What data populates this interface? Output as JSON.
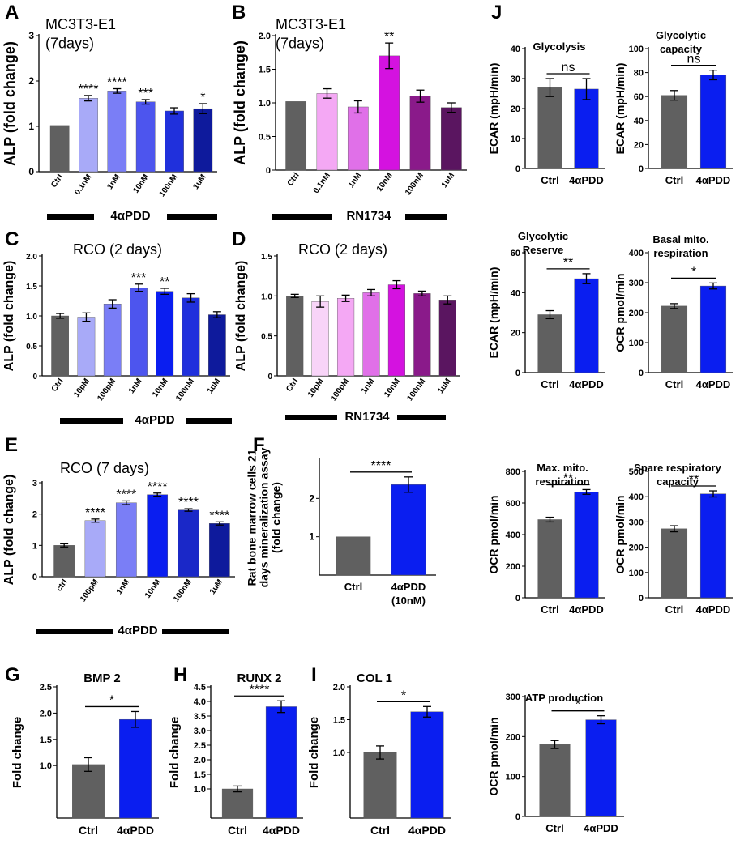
{
  "panel_letters": {
    "A": "A",
    "B": "B",
    "C": "C",
    "D": "D",
    "E": "E",
    "F": "F",
    "G": "G",
    "H": "H",
    "I": "I",
    "J": "J"
  },
  "group_labels": {
    "A": "4αPDD",
    "B": "RN1734",
    "C": "4αPDD",
    "D": "RN1734",
    "E": "4αPDD"
  },
  "colors": {
    "ctrl": "#606060",
    "blue": "#0a1ef0",
    "pink_light": "#f4a8f4",
    "pink_mid": "#e070e8",
    "magenta": "#d412e0",
    "purple": "#8a1a8a",
    "purple_dark": "#5a1560",
    "lav1": "#a8aaf8",
    "lav2": "#7a7ef6",
    "lav3": "#4d55ee",
    "blue2": "#2030dc",
    "navy1": "#1a28c8",
    "navy2": "#0e1a9c",
    "pink_pale": "#f8d4f8"
  },
  "chart_data": [
    {
      "id": "A",
      "type": "bar",
      "title": "MC3T3-E1\n(7days)",
      "ylabel": "ALP (fold change)",
      "ylim": [
        0,
        3
      ],
      "yticks": [
        0,
        1,
        2,
        3
      ],
      "categories": [
        "Ctrl",
        "0.1nM",
        "1nM",
        "10nM",
        "100nM",
        "1uM"
      ],
      "values": [
        1.02,
        1.62,
        1.78,
        1.54,
        1.34,
        1.39
      ],
      "errors": [
        0,
        0.06,
        0.05,
        0.05,
        0.07,
        0.11
      ],
      "sig": [
        "",
        "****",
        "****",
        "***",
        "",
        "*"
      ],
      "colors": [
        "ctrl",
        "lav1",
        "lav2",
        "lav3",
        "blue2",
        "navy2"
      ]
    },
    {
      "id": "B",
      "type": "bar",
      "title": "MC3T3-E1\n(7days)",
      "ylabel": "ALP (fold change)",
      "ylim": [
        0,
        2
      ],
      "yticks": [
        0,
        0.5,
        1.0,
        1.5,
        2.0
      ],
      "categories": [
        "Ctrl",
        "0.1nM",
        "1nM",
        "10nM",
        "100nM",
        "1uM"
      ],
      "values": [
        1.02,
        1.14,
        0.94,
        1.7,
        1.1,
        0.93
      ],
      "errors": [
        0,
        0.07,
        0.09,
        0.19,
        0.09,
        0.07
      ],
      "sig": [
        "",
        "",
        "",
        "**",
        "",
        ""
      ],
      "colors": [
        "ctrl",
        "pink_light",
        "pink_mid",
        "magenta",
        "purple",
        "purple_dark"
      ]
    },
    {
      "id": "C",
      "type": "bar",
      "title": "RCO (2 days)",
      "ylabel": "ALP (fold change)",
      "ylim": [
        0,
        2
      ],
      "yticks": [
        0,
        0.5,
        1.0,
        1.5,
        2.0
      ],
      "categories": [
        "Ctrl",
        "10pM",
        "100pM",
        "1nM",
        "10nM",
        "100nM",
        "1uM"
      ],
      "values": [
        1.0,
        0.98,
        1.2,
        1.47,
        1.41,
        1.3,
        1.02
      ],
      "errors": [
        0.04,
        0.07,
        0.07,
        0.06,
        0.05,
        0.07,
        0.05
      ],
      "sig": [
        "",
        "",
        "",
        "***",
        "**",
        "",
        ""
      ],
      "colors": [
        "ctrl",
        "lav1",
        "lav2",
        "lav3",
        "blue",
        "blue2",
        "navy2"
      ]
    },
    {
      "id": "D",
      "type": "bar",
      "title": "RCO (2 days)",
      "ylabel": "ALP (fold change)",
      "ylim": [
        0,
        1.5
      ],
      "yticks": [
        0,
        0.5,
        1.0,
        1.5
      ],
      "categories": [
        "Ctrl",
        "10pM",
        "100pM",
        "1nM",
        "10nM",
        "100nM",
        "1uM"
      ],
      "values": [
        1.0,
        0.93,
        0.97,
        1.04,
        1.14,
        1.03,
        0.95
      ],
      "errors": [
        0.02,
        0.07,
        0.04,
        0.04,
        0.05,
        0.03,
        0.05
      ],
      "sig": [
        "",
        "",
        "",
        "",
        "",
        "",
        ""
      ],
      "colors": [
        "ctrl",
        "pink_pale",
        "pink_light",
        "pink_mid",
        "magenta",
        "purple",
        "purple_dark"
      ]
    },
    {
      "id": "E",
      "type": "bar",
      "title": "RCO (7 days)",
      "ylabel": "ALP (fold change)",
      "ylim": [
        0,
        3
      ],
      "yticks": [
        0,
        1,
        2,
        3
      ],
      "categories": [
        "ctrl",
        "100pM",
        "1nM",
        "10nM",
        "100nM",
        "1uM"
      ],
      "values": [
        1.0,
        1.79,
        2.36,
        2.62,
        2.13,
        1.7
      ],
      "errors": [
        0.05,
        0.05,
        0.06,
        0.05,
        0.04,
        0.05
      ],
      "sig": [
        "",
        "****",
        "****",
        "****",
        "****",
        "****"
      ],
      "colors": [
        "ctrl",
        "lav1",
        "lav2",
        "blue",
        "navy1",
        "navy2"
      ]
    },
    {
      "id": "F",
      "type": "bar",
      "title": "",
      "ylabel": "Rat bone marrow cells 21\ndays mineralization assay\n(fold change)",
      "ylim": [
        0,
        3
      ],
      "yticks": [
        1,
        2
      ],
      "categories": [
        "Ctrl",
        "4αPDD\n(10nM)"
      ],
      "values": [
        1.0,
        2.36
      ],
      "errors": [
        0,
        0.2
      ],
      "sig": [
        "",
        ""
      ],
      "bracket": "****",
      "colors": [
        "ctrl",
        "blue"
      ]
    },
    {
      "id": "G",
      "type": "bar",
      "title": "BMP 2",
      "ylabel": "Fold change",
      "ylim": [
        0,
        2.5
      ],
      "yticks": [
        1.0,
        1.5,
        2.0,
        2.5
      ],
      "categories": [
        "Ctrl",
        "4αPDD"
      ],
      "values": [
        1.02,
        1.88
      ],
      "errors": [
        0.13,
        0.15
      ],
      "sig": [
        "",
        ""
      ],
      "bracket": "*",
      "colors": [
        "ctrl",
        "blue"
      ]
    },
    {
      "id": "H",
      "type": "bar",
      "title": "RUNX 2",
      "ylabel": "Fold change",
      "ylim": [
        0,
        4.5
      ],
      "yticks": [
        1.0,
        1.5,
        2.0,
        2.5,
        3.0,
        3.5,
        4.0,
        4.5
      ],
      "categories": [
        "Ctrl",
        "4αPDD"
      ],
      "values": [
        1.0,
        3.82
      ],
      "errors": [
        0.1,
        0.2
      ],
      "sig": [
        "",
        ""
      ],
      "bracket": "****",
      "colors": [
        "ctrl",
        "blue"
      ]
    },
    {
      "id": "I",
      "type": "bar",
      "title": "COL 1",
      "ylabel": "Fold change",
      "ylim": [
        0,
        2.0
      ],
      "yticks": [
        1.0,
        1.5,
        2.0
      ],
      "categories": [
        "Ctrl",
        "4αPDD"
      ],
      "values": [
        1.0,
        1.62
      ],
      "errors": [
        0.1,
        0.08
      ],
      "sig": [
        "",
        ""
      ],
      "bracket": "*",
      "colors": [
        "ctrl",
        "blue"
      ]
    },
    {
      "id": "J1",
      "type": "bar",
      "title": "Glycolysis",
      "ylabel": "ECAR (mpH/min)",
      "ylim": [
        0,
        40
      ],
      "yticks": [
        0,
        10,
        20,
        30,
        40
      ],
      "categories": [
        "Ctrl",
        "4αPDD"
      ],
      "values": [
        27,
        26.5
      ],
      "errors": [
        3,
        3.5
      ],
      "sig": [
        "",
        ""
      ],
      "bracket": "ns",
      "colors": [
        "ctrl",
        "blue"
      ]
    },
    {
      "id": "J2",
      "type": "bar",
      "title": "Glycolytic\ncapacity",
      "ylabel": "ECAR (mpH/min)",
      "ylim": [
        0,
        100
      ],
      "yticks": [
        0,
        20,
        40,
        60,
        80,
        100
      ],
      "categories": [
        "Ctrl",
        "4αPDD"
      ],
      "values": [
        61,
        78
      ],
      "errors": [
        4,
        4
      ],
      "sig": [
        "",
        ""
      ],
      "bracket": "ns",
      "colors": [
        "ctrl",
        "blue"
      ]
    },
    {
      "id": "J3",
      "type": "bar",
      "title": "Glycolytic\nReserve",
      "ylabel": "ECAR (mpH/min)",
      "ylim": [
        0,
        60
      ],
      "yticks": [
        0,
        20,
        40,
        60
      ],
      "categories": [
        "Ctrl",
        "4αPDD"
      ],
      "values": [
        29,
        47
      ],
      "errors": [
        2,
        2.5
      ],
      "sig": [
        "",
        ""
      ],
      "bracket": "**",
      "colors": [
        "ctrl",
        "blue"
      ]
    },
    {
      "id": "J4",
      "type": "bar",
      "title": "Basal mito.\nrespiration",
      "ylabel": "OCR pmol/min",
      "ylim": [
        0,
        400
      ],
      "yticks": [
        0,
        100,
        200,
        300,
        400
      ],
      "categories": [
        "Ctrl",
        "4αPDD"
      ],
      "values": [
        222,
        289
      ],
      "errors": [
        8,
        10
      ],
      "sig": [
        "",
        ""
      ],
      "bracket": "*",
      "colors": [
        "ctrl",
        "blue"
      ]
    },
    {
      "id": "J5",
      "type": "bar",
      "title": "Max. mito.\nrespiration",
      "ylabel": "OCR pmol/min",
      "ylim": [
        0,
        800
      ],
      "yticks": [
        0,
        200,
        400,
        600,
        800
      ],
      "categories": [
        "Ctrl",
        "4αPDD"
      ],
      "values": [
        495,
        670
      ],
      "errors": [
        15,
        15
      ],
      "sig": [
        "",
        ""
      ],
      "bracket": "**",
      "colors": [
        "ctrl",
        "blue"
      ]
    },
    {
      "id": "J6",
      "type": "bar",
      "title": "Spare respiratory\ncapacity",
      "ylabel": "OCR pmol/min",
      "ylim": [
        0,
        500
      ],
      "yticks": [
        0,
        100,
        200,
        300,
        400,
        500
      ],
      "categories": [
        "Ctrl",
        "4αPDD"
      ],
      "values": [
        273,
        411
      ],
      "errors": [
        12,
        12
      ],
      "sig": [
        "",
        ""
      ],
      "bracket": "**",
      "colors": [
        "ctrl",
        "blue"
      ]
    },
    {
      "id": "J7",
      "type": "bar",
      "title": "ATP production",
      "ylabel": "OCR pmol/min",
      "ylim": [
        0,
        300
      ],
      "yticks": [
        0,
        100,
        200,
        300
      ],
      "categories": [
        "Ctrl",
        "4αPDD"
      ],
      "values": [
        180,
        242
      ],
      "errors": [
        10,
        10
      ],
      "sig": [
        "",
        ""
      ],
      "bracket": "*",
      "colors": [
        "ctrl",
        "blue"
      ]
    }
  ]
}
